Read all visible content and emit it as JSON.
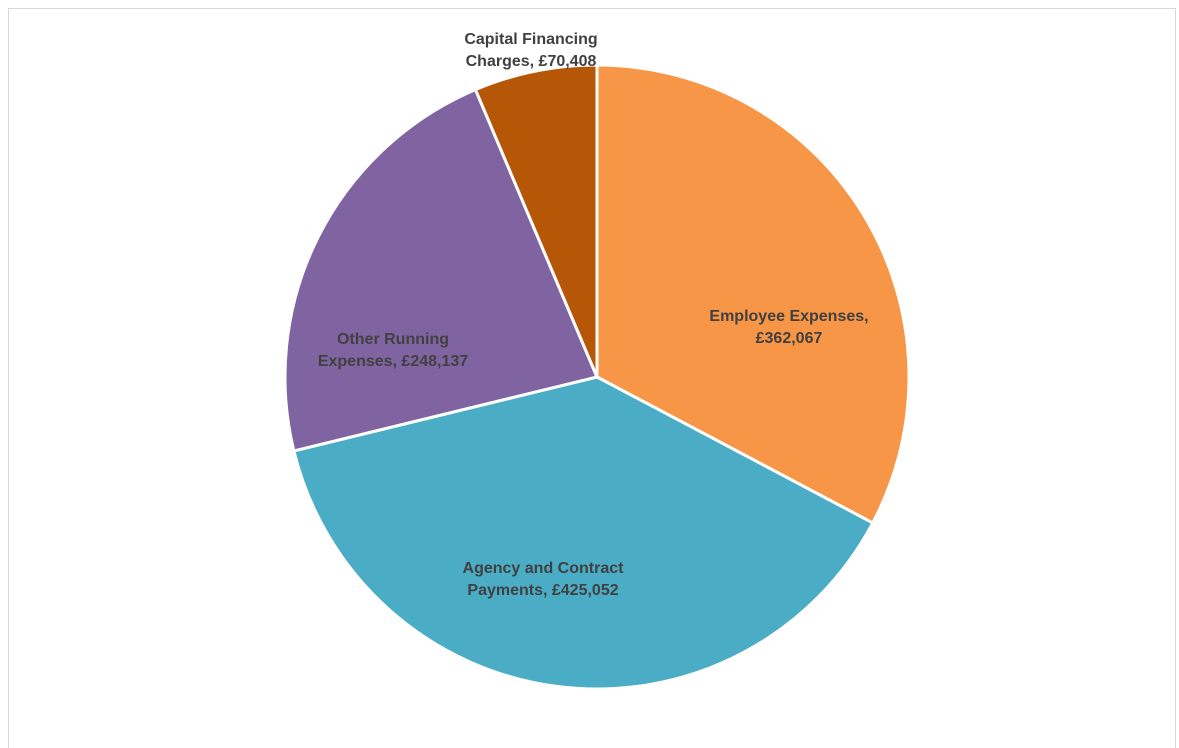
{
  "chart_data": {
    "type": "pie",
    "title": "",
    "legend": "none",
    "start_angle_deg": 0,
    "direction": "clockwise",
    "slices": [
      {
        "category": "Employee Expenses",
        "value": 362067,
        "label_lines": [
          "Employee Expenses,",
          "£362,067"
        ],
        "color": "#F79646"
      },
      {
        "category": "Agency and Contract Payments",
        "value": 425052,
        "label_lines": [
          "Agency and Contract",
          "Payments, £425,052"
        ],
        "color": "#4BACC6"
      },
      {
        "category": "Other Running Expenses",
        "value": 248137,
        "label_lines": [
          "Other Running",
          "Expenses, £248,137"
        ],
        "color": "#8064A2"
      },
      {
        "category": "Capital Financing Charges",
        "value": 70408,
        "label_lines": [
          "Capital Financing",
          "Charges, £70,408"
        ],
        "color": "#B65708"
      }
    ]
  }
}
